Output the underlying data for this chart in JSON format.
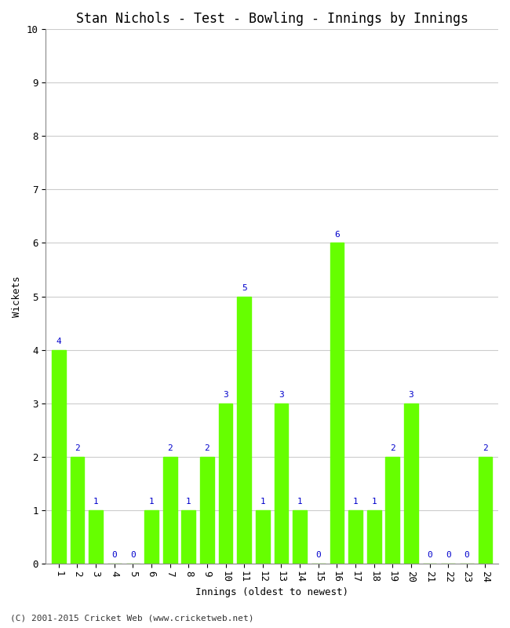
{
  "title": "Stan Nichols - Test - Bowling - Innings by Innings",
  "xlabel": "Innings (oldest to newest)",
  "ylabel": "Wickets",
  "categories": [
    "1",
    "2",
    "3",
    "4",
    "5",
    "6",
    "7",
    "8",
    "9",
    "10",
    "11",
    "12",
    "13",
    "14",
    "15",
    "16",
    "17",
    "18",
    "19",
    "20",
    "21",
    "22",
    "23",
    "24"
  ],
  "values": [
    4,
    2,
    1,
    0,
    0,
    1,
    2,
    1,
    2,
    3,
    5,
    1,
    3,
    1,
    0,
    6,
    1,
    1,
    2,
    3,
    0,
    0,
    0,
    2
  ],
  "bar_color": "#66ff00",
  "bar_edge_color": "#66ff00",
  "label_color": "#0000cc",
  "background_color": "#ffffff",
  "ylim": [
    0,
    10
  ],
  "yticks": [
    0,
    1,
    2,
    3,
    4,
    5,
    6,
    7,
    8,
    9,
    10
  ],
  "grid_color": "#cccccc",
  "title_fontsize": 12,
  "label_fontsize": 9,
  "tick_fontsize": 9,
  "annotation_fontsize": 8,
  "footer": "(C) 2001-2015 Cricket Web (www.cricketweb.net)"
}
